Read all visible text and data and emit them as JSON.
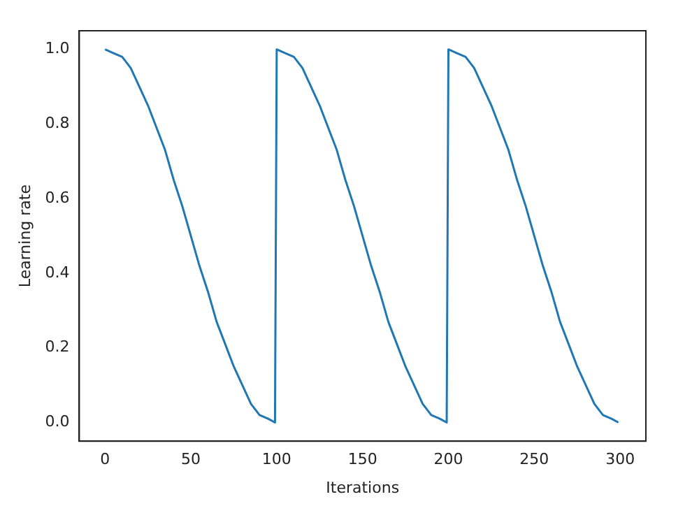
{
  "chart_data": {
    "type": "line",
    "xlabel": "Iterations",
    "ylabel": "Learning rate",
    "x": [
      0,
      5,
      10,
      15,
      20,
      25,
      30,
      35,
      40,
      45,
      50,
      55,
      60,
      65,
      70,
      75,
      80,
      85,
      90,
      95,
      99,
      100,
      105,
      110,
      115,
      120,
      125,
      130,
      135,
      140,
      145,
      150,
      155,
      160,
      165,
      170,
      175,
      180,
      185,
      190,
      195,
      199,
      200,
      205,
      210,
      215,
      220,
      225,
      230,
      235,
      240,
      245,
      250,
      255,
      260,
      265,
      270,
      275,
      280,
      285,
      290,
      295,
      299
    ],
    "series": [
      {
        "color": "#1f77b4",
        "values": [
          1,
          0.99,
          0.98,
          0.95,
          0.9,
          0.85,
          0.79,
          0.73,
          0.65,
          0.58,
          0.5,
          0.42,
          0.35,
          0.27,
          0.21,
          0.15,
          0.1,
          0.05,
          0.02,
          0.01,
          0,
          1,
          0.99,
          0.98,
          0.95,
          0.9,
          0.85,
          0.79,
          0.73,
          0.65,
          0.58,
          0.5,
          0.42,
          0.35,
          0.27,
          0.21,
          0.15,
          0.1,
          0.05,
          0.02,
          0.01,
          0,
          1,
          0.99,
          0.98,
          0.95,
          0.9,
          0.85,
          0.79,
          0.73,
          0.65,
          0.58,
          0.5,
          0.42,
          0.35,
          0.27,
          0.21,
          0.15,
          0.1,
          0.05,
          0.02,
          0.01,
          0
        ]
      }
    ],
    "xlim": [
      -15,
      315
    ],
    "xticks": [
      0,
      50,
      100,
      150,
      200,
      250,
      300
    ],
    "ylim": [
      -0.05,
      1.05
    ],
    "yticks": [
      {
        "value": 0,
        "label": "0.0"
      },
      {
        "value": 0.2,
        "label": "0.2"
      },
      {
        "value": 0.4,
        "label": "0.4"
      },
      {
        "value": 0.6,
        "label": "0.6"
      },
      {
        "value": 0.8,
        "label": "0.8"
      },
      {
        "value": 1,
        "label": "1.0"
      }
    ],
    "grid": false,
    "legend": false
  }
}
